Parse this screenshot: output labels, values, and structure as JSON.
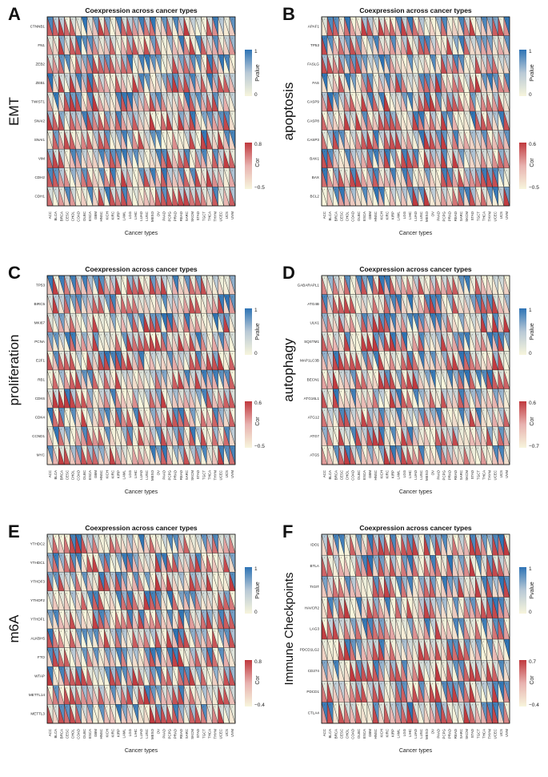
{
  "cancer_types": [
    "ACC",
    "BLCA",
    "BRCA",
    "CESC",
    "CHOL",
    "COAD",
    "DLBC",
    "ESCA",
    "GBM",
    "HNSC",
    "KICH",
    "KIRC",
    "KIRP",
    "LAML",
    "LGG",
    "LIHC",
    "LUAD",
    "LUSC",
    "MESO",
    "OV",
    "PAAD",
    "PCPG",
    "PRAD",
    "READ",
    "SARC",
    "SKCM",
    "STAD",
    "TGCT",
    "THCA",
    "THYM",
    "UCEC",
    "UCS",
    "UVM"
  ],
  "colors": {
    "pvalue_low": "#f7f5dc",
    "pvalue_mid": "#b9c9d6",
    "pvalue_high": "#2e74b5",
    "cor_low": "#f7f5dc",
    "cor_mid": "#e8b3b0",
    "cor_high": "#c0393e"
  },
  "chart_data": [
    {
      "type": "heatmap",
      "panel": "A",
      "title": "Coexpression across cancer types",
      "side_label": "EMT",
      "xlabel": "Cancer types",
      "genes": [
        "CTNNB1",
        "FN1",
        "ZEB2",
        "ZEB1",
        "TWIST1",
        "SNAI2",
        "SNAI1",
        "VIM",
        "CDH2",
        "CDH1"
      ],
      "pvalue_legend": {
        "label": "Pvalue",
        "min": "0",
        "max": "1"
      },
      "cor_legend": {
        "label": "Cor",
        "min": "−0.5",
        "max": "0.8"
      }
    },
    {
      "type": "heatmap",
      "panel": "B",
      "title": "Coexpression across cancer types",
      "side_label": "apoptosis",
      "xlabel": "Cancer types",
      "genes": [
        "APAF1",
        "TP53",
        "FASLG",
        "FAS",
        "CASP9",
        "CASP8",
        "CASP3",
        "BAK1",
        "BAX",
        "BCL2"
      ],
      "pvalue_legend": {
        "label": "Pvalue",
        "min": "0",
        "max": "1"
      },
      "cor_legend": {
        "label": "Cor",
        "min": "−0.5",
        "max": "0.6"
      }
    },
    {
      "type": "heatmap",
      "panel": "C",
      "title": "Coexpression across cancer types",
      "side_label": "proliferation",
      "xlabel": "Cancer types",
      "genes": [
        "TP53",
        "BIRC5",
        "MKI67",
        "PCNA",
        "E2F1",
        "RB1",
        "CDK6",
        "CDK4",
        "CCND1",
        "MYC"
      ],
      "pvalue_legend": {
        "label": "Pvalue",
        "min": "0",
        "max": "1"
      },
      "cor_legend": {
        "label": "Cor",
        "min": "−0.5",
        "max": "0.6"
      }
    },
    {
      "type": "heatmap",
      "panel": "D",
      "title": "Coexpression across cancer types",
      "side_label": "autophagy",
      "xlabel": "Cancer types",
      "genes": [
        "GABARAPL1",
        "ATG4B",
        "ULK1",
        "SQSTM1",
        "MAP1LC3B",
        "BECN1",
        "ATG16L1",
        "ATG12",
        "ATG7",
        "ATG5"
      ],
      "pvalue_legend": {
        "label": "Pvalue",
        "min": "0",
        "max": "1"
      },
      "cor_legend": {
        "label": "Cor",
        "min": "−0.7",
        "max": "0.6"
      }
    },
    {
      "type": "heatmap",
      "panel": "E",
      "title": "Coexpression across cancer types",
      "side_label": "m6A",
      "xlabel": "Cancer types",
      "genes": [
        "YTHDC2",
        "YTHDC1",
        "YTHDF3",
        "YTHDF2",
        "YTHDF1",
        "ALKBH5",
        "FTO",
        "WTAP",
        "METTL14",
        "METTL3"
      ],
      "pvalue_legend": {
        "label": "Pvalue",
        "min": "0",
        "max": "1"
      },
      "cor_legend": {
        "label": "Cor",
        "min": "−0.4",
        "max": "0.8"
      }
    },
    {
      "type": "heatmap",
      "panel": "F",
      "title": "Coexpression across cancer types",
      "side_label": "Immune Checkpoints",
      "xlabel": "Cancer types",
      "genes": [
        "IDO1",
        "BTLA",
        "TIGIT",
        "HAVCR2",
        "LAG3",
        "PDCD1LG2",
        "CD274",
        "PDCD1",
        "CTLA4"
      ],
      "pvalue_legend": {
        "label": "Pvalue",
        "min": "0",
        "max": "1"
      },
      "cor_legend": {
        "label": "Cor",
        "min": "−0.4",
        "max": "0.7"
      }
    }
  ]
}
